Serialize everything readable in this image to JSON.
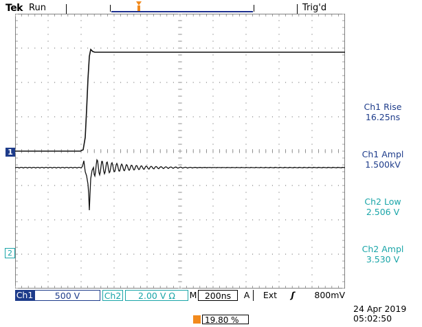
{
  "header": {
    "brand": "Tek",
    "run_state": "Run",
    "trigger_status": "Trig'd"
  },
  "colors": {
    "ch1": "#1d3b8a",
    "ch2": "#19a5a8",
    "trigger": "#f28a1d",
    "trace": "#111111"
  },
  "measurements": [
    {
      "label": "Ch1 Rise",
      "value": "16.25ns"
    },
    {
      "label": "Ch1 Ampl",
      "value": "1.500kV"
    },
    {
      "label": "Ch2 Low",
      "value": "2.506 V"
    },
    {
      "label": "Ch2 Ampl",
      "value": "3.530 V"
    }
  ],
  "markers": {
    "ch1": "1",
    "ch2": "2"
  },
  "status_bar": {
    "ch1_label": "Ch1",
    "ch1_scale": "500 V",
    "ch2_label": "Ch2",
    "ch2_scale": "2.00 V Ω",
    "m_label": "M",
    "time_scale": "200ns",
    "a_label": "A",
    "trigger_source": "Ext",
    "trigger_level": "800mV"
  },
  "trigger_position": "19.80 %",
  "date": "24 Apr 2019",
  "time": "05:02:50"
}
